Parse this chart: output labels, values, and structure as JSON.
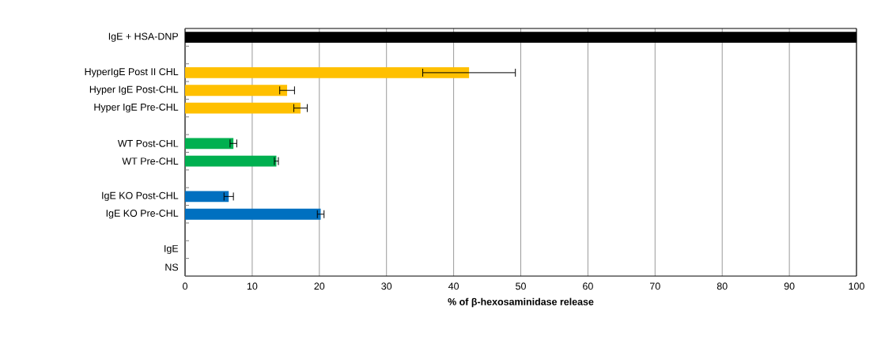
{
  "chart_data": {
    "type": "bar",
    "orientation": "horizontal",
    "categories": [
      "IgE + HSA-DNP",
      null,
      "HyperIgE Post II CHL",
      "Hyper IgE Post-CHL",
      "Hyper IgE Pre-CHL",
      null,
      "WT Post-CHL",
      "WT Pre-CHL",
      null,
      "IgE KO Post-CHL",
      "IgE KO Pre-CHL",
      null,
      "IgE",
      "NS"
    ],
    "values": [
      100,
      null,
      42.3,
      15.2,
      17.2,
      null,
      7.2,
      13.6,
      null,
      6.5,
      20.2,
      null,
      null,
      null
    ],
    "errors": [
      null,
      null,
      6.9,
      1.1,
      1.0,
      null,
      0.5,
      0.3,
      null,
      0.7,
      0.5,
      null,
      null,
      null
    ],
    "colors": [
      "#000000",
      null,
      "#ffc000",
      "#ffc000",
      "#ffc000",
      null,
      "#00b050",
      "#00b050",
      null,
      "#0070c0",
      "#0070c0",
      null,
      null,
      null
    ],
    "xlim": [
      0,
      100
    ],
    "xticks": [
      0,
      10,
      20,
      30,
      40,
      50,
      60,
      70,
      80,
      90,
      100
    ],
    "xlabel": "% of β-hexosaminidase release",
    "grid": "x"
  }
}
